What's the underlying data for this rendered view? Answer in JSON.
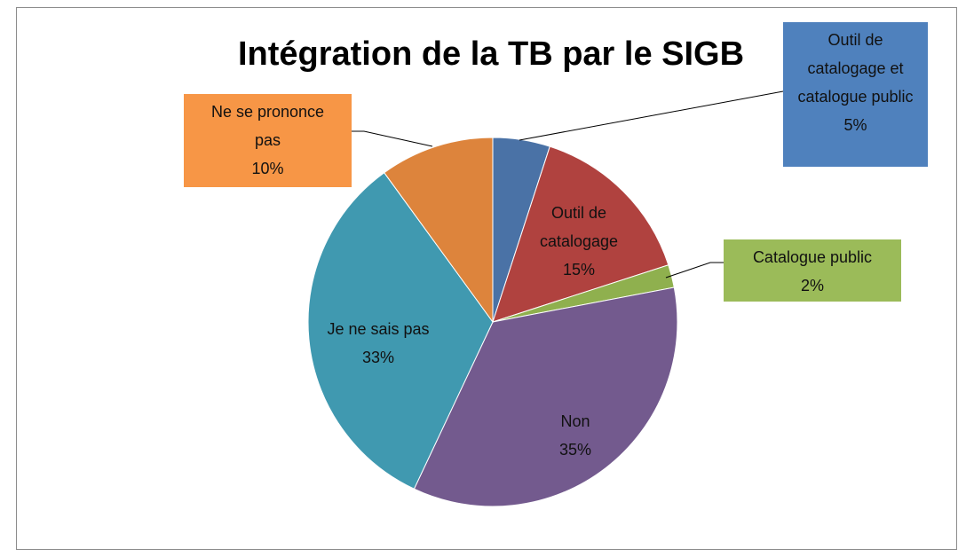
{
  "chart_data": {
    "type": "pie",
    "title": "Intégration de la TB par le SIGB",
    "categories": [
      "Outil de catalogage et catalogue public",
      "Outil de catalogage",
      "Catalogue public",
      "Non",
      "Je ne sais pas",
      "Ne se prononce pas"
    ],
    "values": [
      5,
      15,
      2,
      35,
      33,
      10
    ],
    "value_labels": [
      "5%",
      "15%",
      "2%",
      "35%",
      "33%",
      "10%"
    ],
    "colors": [
      "#4a72a6",
      "#b0423f",
      "#8fb04e",
      "#735a8e",
      "#4099b0",
      "#dd843c"
    ]
  }
}
